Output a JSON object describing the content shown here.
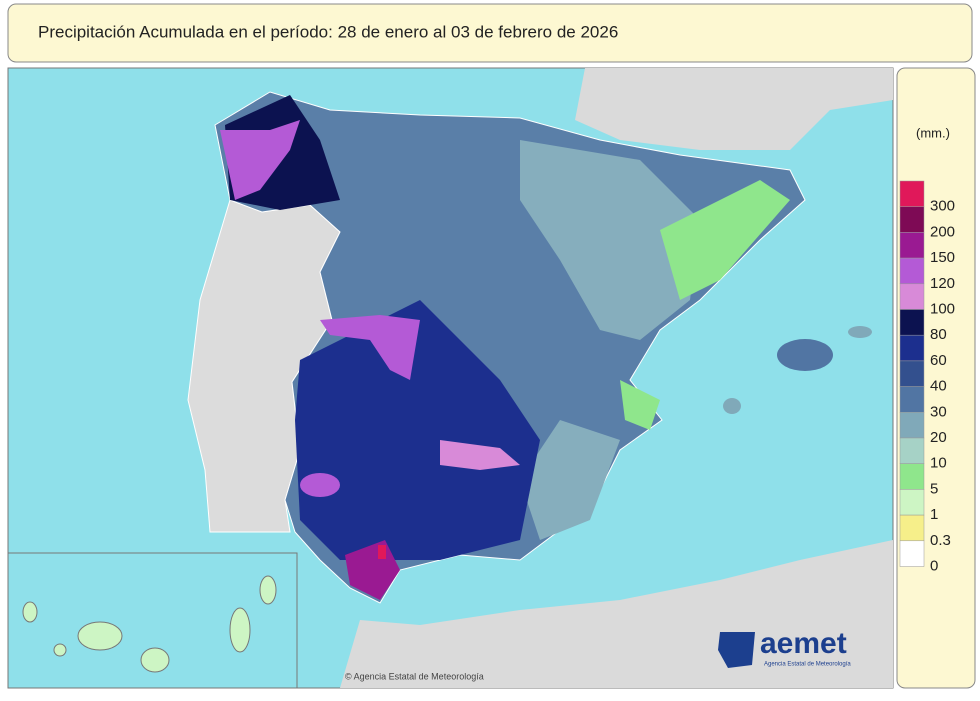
{
  "header": {
    "title": "Precipitación Acumulada en el período: 28  de enero  al 03  de febrero de  2026"
  },
  "legend": {
    "unit": "(mm.)",
    "items": [
      {
        "value": 300,
        "color": "#e0185a"
      },
      {
        "value": 200,
        "color": "#7e0a55"
      },
      {
        "value": 150,
        "color": "#9a1a92"
      },
      {
        "value": 120,
        "color": "#b45ad6"
      },
      {
        "value": 100,
        "color": "#d88ad8"
      },
      {
        "value": 80,
        "color": "#0c1250"
      },
      {
        "value": 60,
        "color": "#1c2f8e"
      },
      {
        "value": 40,
        "color": "#33508e"
      },
      {
        "value": 30,
        "color": "#5175a3"
      },
      {
        "value": 20,
        "color": "#80a9b9"
      },
      {
        "value": 10,
        "color": "#a6d2c6"
      },
      {
        "value": 5,
        "color": "#8fe68c"
      },
      {
        "value": 1,
        "color": "#cdf5c4"
      },
      {
        "value": 0.3,
        "color": "#f6ef8a"
      },
      {
        "value": 0,
        "color": "#ffffff"
      }
    ]
  },
  "logo": {
    "name": "aemet",
    "subtitle": "Agencia Estatal de Meteorología"
  },
  "credit": "© Agencia Estatal de Meteorología"
}
